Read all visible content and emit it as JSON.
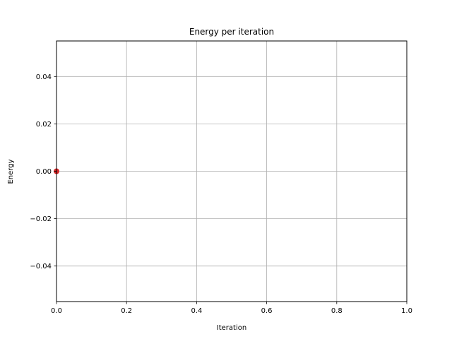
{
  "chart_data": {
    "type": "scatter",
    "title": "Energy per iteration",
    "xlabel": "Iteration",
    "ylabel": "Energy",
    "xlim": [
      0,
      1
    ],
    "ylim": [
      -0.055,
      0.055
    ],
    "xticks": [
      0.0,
      0.2,
      0.4,
      0.6,
      0.8,
      1.0
    ],
    "xtick_labels": [
      "0.0",
      "0.2",
      "0.4",
      "0.6",
      "0.8",
      "1.0"
    ],
    "yticks": [
      -0.04,
      -0.02,
      0.0,
      0.02,
      0.04
    ],
    "ytick_labels": [
      "−0.04",
      "−0.02",
      "0.00",
      "0.02",
      "0.04"
    ],
    "grid": true,
    "series": [
      {
        "x": [
          0
        ],
        "y": [
          0
        ],
        "color": "#d62728"
      }
    ]
  }
}
